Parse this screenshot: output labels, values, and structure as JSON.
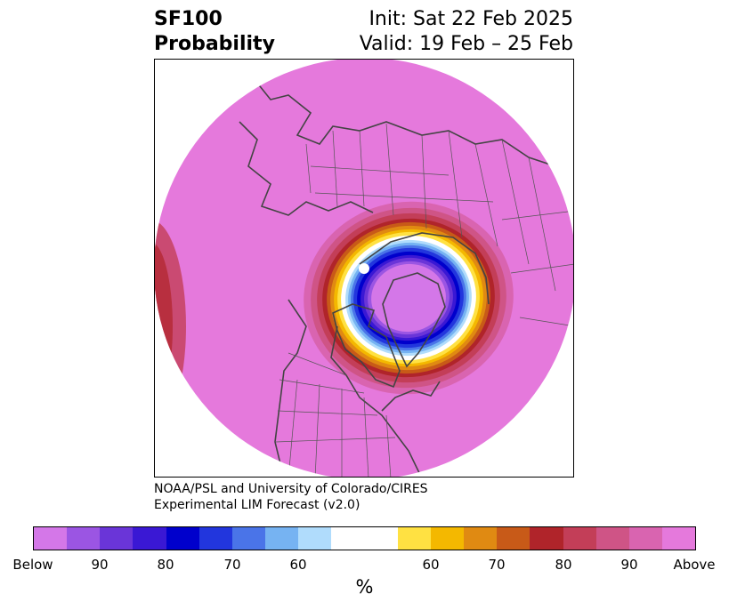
{
  "header": {
    "title_line1": "SF100",
    "title_line2": "Probability",
    "init_text": "Init: Sat 22 Feb 2025",
    "valid_text": "Valid: 19 Feb – 25 Feb"
  },
  "credit": {
    "line1": "NOAA/PSL and University of Colorado/CIRES",
    "line2": "Experimental LIM Forecast (v2.0)"
  },
  "colorbar": {
    "colors": [
      "#d477e8",
      "#9b55e3",
      "#6a35d8",
      "#3a18d4",
      "#0000cc",
      "#2236dd",
      "#4a74e8",
      "#76b3f2",
      "#b0dcfc",
      "#ffffff",
      "#ffffff",
      "#ffe142",
      "#f4b800",
      "#e08a12",
      "#c85a18",
      "#b0242a",
      "#c33e58",
      "#cf5486",
      "#d964b0",
      "#e579dc"
    ],
    "tick_labels": [
      "Below",
      "90",
      "80",
      "70",
      "60",
      "60",
      "70",
      "80",
      "90",
      "Above"
    ],
    "unit": "%"
  },
  "map": {
    "background_color": "#e579dc",
    "projection": "north-polar-stereographic"
  }
}
